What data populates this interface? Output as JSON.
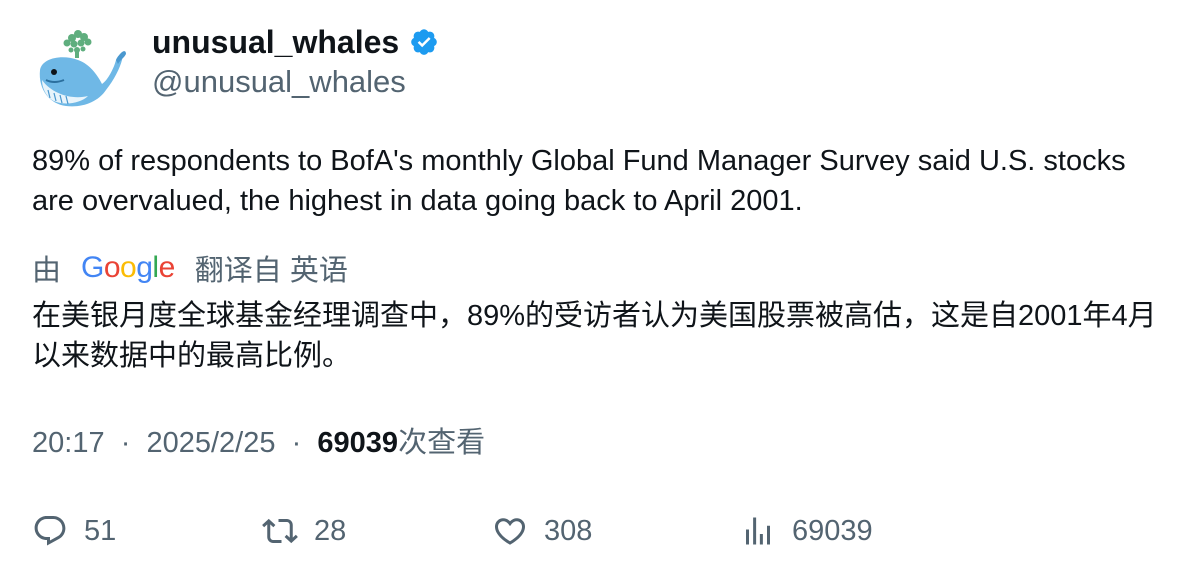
{
  "author": {
    "display_name": "unusual_whales",
    "handle": "@unusual_whales",
    "verified": true
  },
  "tweet": {
    "text": "89% of respondents to BofA's monthly Global Fund Manager Survey said U.S. stocks are overvalued, the highest in data going back to April 2001."
  },
  "translation": {
    "by_label": "由",
    "provider": "Google",
    "translated_from_label": "翻译自 英语",
    "text": "在美银月度全球基金经理调查中，89%的受访者认为美国股票被高估，这是自2001年4月以来数据中的最高比例。"
  },
  "meta": {
    "time": "20:17",
    "separator": "·",
    "date": "2025/2/25",
    "views_count": "69039",
    "views_label": "次查看"
  },
  "actions": {
    "replies": "51",
    "retweets": "28",
    "likes": "308",
    "views": "69039"
  },
  "colors": {
    "text_primary": "#0f1419",
    "text_secondary": "#536471",
    "verified_blue": "#1d9bf0"
  }
}
